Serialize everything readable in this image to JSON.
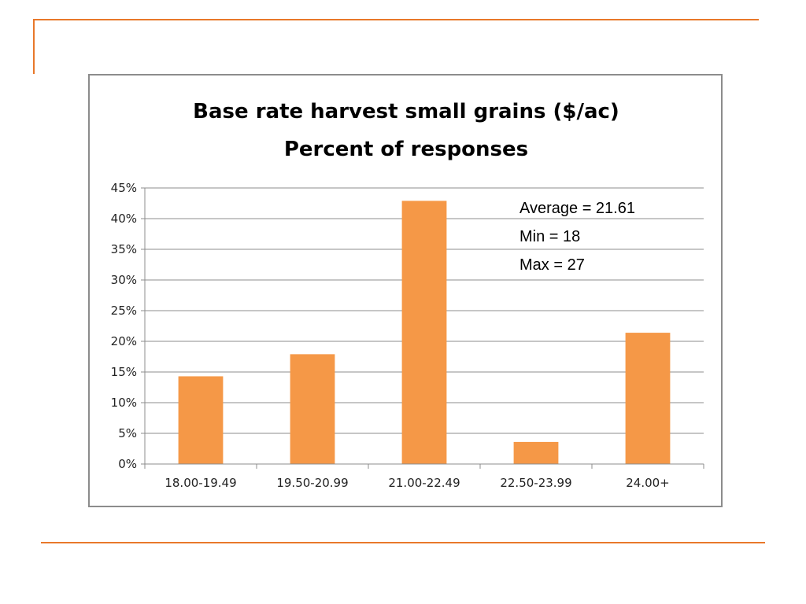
{
  "colors": {
    "accent": "#e8782a",
    "bar": "#f59847",
    "grid": "#8c8c8c",
    "frame": "#8c8c8c"
  },
  "chart_data": {
    "type": "bar",
    "title": [
      "Base rate harvest small grains ($/ac)",
      "Percent of responses"
    ],
    "categories": [
      "18.00-19.49",
      "19.50-20.99",
      "21.00-22.49",
      "22.50-23.99",
      "24.00+"
    ],
    "values": [
      14.3,
      17.9,
      42.9,
      3.6,
      21.4
    ],
    "ylim": [
      0,
      45
    ],
    "yticks": [
      "0%",
      "5%",
      "10%",
      "15%",
      "20%",
      "25%",
      "30%",
      "35%",
      "40%",
      "45%"
    ],
    "grid": true,
    "annotations": [
      "Average = 21.61",
      "Min = 18",
      "Max = 27"
    ]
  }
}
